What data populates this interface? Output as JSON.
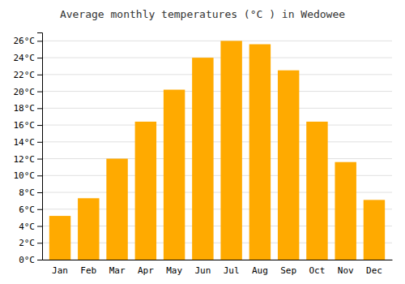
{
  "chart_data": {
    "type": "bar",
    "title": "Average monthly temperatures (°C ) in Wedowee",
    "categories": [
      "Jan",
      "Feb",
      "Mar",
      "Apr",
      "May",
      "Jun",
      "Jul",
      "Aug",
      "Sep",
      "Oct",
      "Nov",
      "Dec"
    ],
    "values": [
      5.2,
      7.3,
      12.0,
      16.4,
      20.2,
      24.0,
      26.0,
      25.6,
      22.5,
      16.4,
      11.6,
      7.1
    ],
    "color": "#FFAA00",
    "ylim": [
      0,
      27
    ],
    "yticks": [
      {
        "value": 0,
        "label": "0°C"
      },
      {
        "value": 2,
        "label": "2°C"
      },
      {
        "value": 4,
        "label": "4°C"
      },
      {
        "value": 6,
        "label": "6°C"
      },
      {
        "value": 8,
        "label": "8°C"
      },
      {
        "value": 10,
        "label": "10°C"
      },
      {
        "value": 12,
        "label": "12°C"
      },
      {
        "value": 14,
        "label": "14°C"
      },
      {
        "value": 16,
        "label": "16°C"
      },
      {
        "value": 18,
        "label": "18°C"
      },
      {
        "value": 20,
        "label": "20°C"
      },
      {
        "value": 22,
        "label": "22°C"
      },
      {
        "value": 24,
        "label": "24°C"
      },
      {
        "value": 26,
        "label": "26°C"
      }
    ],
    "grid": true
  }
}
